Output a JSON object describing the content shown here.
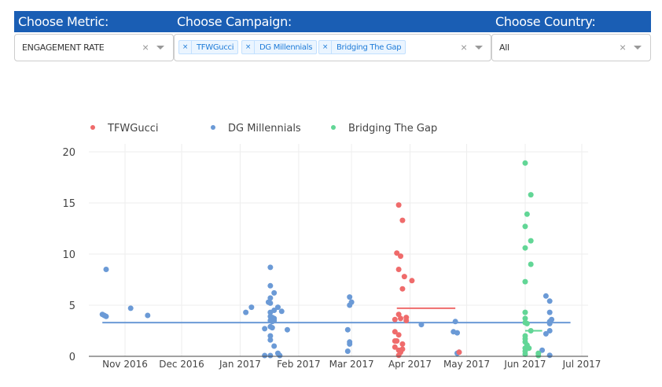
{
  "filters": {
    "metric": {
      "label": "Choose Metric:",
      "value": "ENGAGEMENT RATE",
      "clear_icon": "×"
    },
    "campaign": {
      "label": "Choose Campaign:",
      "tags": [
        "TFWGucci",
        "DG Millennials",
        "Bridging The Gap"
      ],
      "tag_remove_icon": "×",
      "clear_icon": "×"
    },
    "country": {
      "label": "Choose Country:",
      "value": "All",
      "clear_icon": "×"
    }
  },
  "colors": {
    "header": "#1a5eb4",
    "tfwgucci": "#ef6b6b",
    "dg_millennials": "#6b9ad6",
    "bridging_the_gap": "#62d696"
  },
  "chart_data": {
    "type": "scatter",
    "title": "",
    "xlabel": "",
    "ylabel": "",
    "ylim": [
      0,
      20
    ],
    "yticks": [
      0,
      5,
      10,
      15,
      20
    ],
    "xticks": [
      "Nov 2016",
      "Dec 2016",
      "Jan 2017",
      "Feb 2017",
      "Mar 2017",
      "Apr 2017",
      "May 2017",
      "Jun 2017",
      "Jul 2017"
    ],
    "grid": true,
    "legend_position": "top",
    "series": [
      {
        "name": "TFWGucci",
        "color": "#ef6b6b",
        "mean_line": {
          "value": 4.7,
          "x_start": "2017-03-25",
          "x_end": "2017-04-25"
        },
        "points": [
          [
            "2017-03-26",
            14.8
          ],
          [
            "2017-03-28",
            13.3
          ],
          [
            "2017-03-25",
            10.1
          ],
          [
            "2017-03-27",
            9.8
          ],
          [
            "2017-03-26",
            8.5
          ],
          [
            "2017-03-29",
            7.8
          ],
          [
            "2017-04-02",
            7.4
          ],
          [
            "2017-03-28",
            6.6
          ],
          [
            "2017-03-26",
            4.1
          ],
          [
            "2017-03-24",
            3.6
          ],
          [
            "2017-03-27",
            3.7
          ],
          [
            "2017-03-30",
            3.8
          ],
          [
            "2017-03-30",
            3.5
          ],
          [
            "2017-03-24",
            2.4
          ],
          [
            "2017-03-26",
            2.1
          ],
          [
            "2017-03-24",
            1.5
          ],
          [
            "2017-03-25",
            1.5
          ],
          [
            "2017-03-28",
            1.2
          ],
          [
            "2017-03-24",
            0.9
          ],
          [
            "2017-03-26",
            0.6
          ],
          [
            "2017-03-27",
            0.4
          ],
          [
            "2017-03-28",
            0.7
          ],
          [
            "2017-03-26",
            0.1
          ],
          [
            "2017-04-27",
            0.4
          ]
        ]
      },
      {
        "name": "DG Millennials",
        "color": "#6b9ad6",
        "mean_line": {
          "value": 3.3,
          "x_start": "2016-10-20",
          "x_end": "2017-06-25"
        },
        "points": [
          [
            "2016-10-22",
            8.5
          ],
          [
            "2016-10-20",
            4.1
          ],
          [
            "2016-10-21",
            4.0
          ],
          [
            "2016-10-22",
            3.9
          ],
          [
            "2016-11-04",
            4.7
          ],
          [
            "2016-11-13",
            4.0
          ],
          [
            "2017-01-04",
            4.3
          ],
          [
            "2017-01-07",
            4.8
          ],
          [
            "2017-01-17",
            8.7
          ],
          [
            "2017-01-17",
            6.9
          ],
          [
            "2017-01-19",
            6.2
          ],
          [
            "2017-01-17",
            5.7
          ],
          [
            "2017-01-16",
            5.3
          ],
          [
            "2017-01-17",
            5.2
          ],
          [
            "2017-01-21",
            4.8
          ],
          [
            "2017-01-19",
            4.5
          ],
          [
            "2017-01-23",
            4.4
          ],
          [
            "2017-01-17",
            4.3
          ],
          [
            "2017-01-17",
            3.9
          ],
          [
            "2017-01-18",
            3.8
          ],
          [
            "2017-01-19",
            3.7
          ],
          [
            "2017-01-17",
            3.5
          ],
          [
            "2017-01-18",
            3.4
          ],
          [
            "2017-01-19",
            3.5
          ],
          [
            "2017-01-17",
            2.9
          ],
          [
            "2017-01-18",
            2.8
          ],
          [
            "2017-01-14",
            2.7
          ],
          [
            "2017-01-26",
            2.6
          ],
          [
            "2017-01-17",
            2.0
          ],
          [
            "2017-01-17",
            1.6
          ],
          [
            "2017-01-19",
            1.0
          ],
          [
            "2017-01-21",
            0.3
          ],
          [
            "2017-01-14",
            0.05
          ],
          [
            "2017-01-17",
            0.05
          ],
          [
            "2017-01-22",
            0.05
          ],
          [
            "2017-02-28",
            5.8
          ],
          [
            "2017-03-01",
            5.3
          ],
          [
            "2017-02-28",
            5.0
          ],
          [
            "2017-02-27",
            2.6
          ],
          [
            "2017-02-28",
            1.4
          ],
          [
            "2017-02-28",
            1.2
          ],
          [
            "2017-02-27",
            0.5
          ],
          [
            "2017-04-07",
            3.1
          ],
          [
            "2017-04-25",
            3.4
          ],
          [
            "2017-04-24",
            2.4
          ],
          [
            "2017-04-26",
            2.3
          ],
          [
            "2017-04-26",
            0.3
          ],
          [
            "2017-04-27",
            0.4
          ],
          [
            "2017-06-12",
            5.9
          ],
          [
            "2017-06-14",
            5.4
          ],
          [
            "2017-06-14",
            4.3
          ],
          [
            "2017-06-15",
            3.6
          ],
          [
            "2017-06-14",
            3.4
          ],
          [
            "2017-06-14",
            3.2
          ],
          [
            "2017-06-14",
            2.5
          ],
          [
            "2017-06-12",
            2.2
          ],
          [
            "2017-06-10",
            0.6
          ],
          [
            "2017-06-14",
            0.1
          ]
        ]
      },
      {
        "name": "Bridging The Gap",
        "color": "#62d696",
        "mean_line": {
          "value": 2.5,
          "x_start": "2017-06-01",
          "x_end": "2017-06-10"
        },
        "points": [
          [
            "2017-06-01",
            18.9
          ],
          [
            "2017-06-04",
            15.8
          ],
          [
            "2017-06-02",
            13.9
          ],
          [
            "2017-06-01",
            12.7
          ],
          [
            "2017-06-04",
            11.3
          ],
          [
            "2017-06-01",
            10.6
          ],
          [
            "2017-06-04",
            9.0
          ],
          [
            "2017-06-01",
            7.3
          ],
          [
            "2017-06-01",
            4.3
          ],
          [
            "2017-06-01",
            3.7
          ],
          [
            "2017-06-01",
            3.3
          ],
          [
            "2017-06-02",
            3.2
          ],
          [
            "2017-06-04",
            2.5
          ],
          [
            "2017-06-01",
            2.0
          ],
          [
            "2017-06-01",
            1.7
          ],
          [
            "2017-06-01",
            1.4
          ],
          [
            "2017-06-02",
            1.1
          ],
          [
            "2017-06-01",
            0.8
          ],
          [
            "2017-06-03",
            0.8
          ],
          [
            "2017-06-01",
            0.5
          ],
          [
            "2017-06-01",
            0.2
          ],
          [
            "2017-06-08",
            0.3
          ],
          [
            "2017-06-08",
            0.05
          ]
        ]
      }
    ]
  }
}
